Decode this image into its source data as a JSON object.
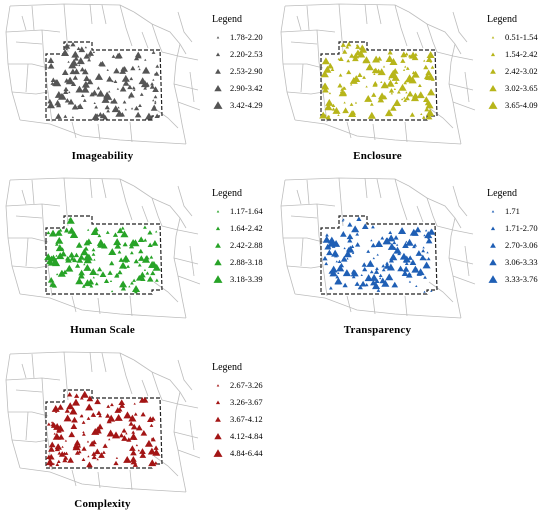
{
  "panels": [
    {
      "title": "Imageability",
      "color": "#555555",
      "legend_title": "Legend",
      "classes": [
        "1.78-2.20",
        "2.20-2.53",
        "2.53-2.90",
        "2.90-3.42",
        "3.42-4.29"
      ]
    },
    {
      "title": "Enclosure",
      "color": "#b7b51a",
      "legend_title": "Legend",
      "classes": [
        "0.51-1.54",
        "1.54-2.42",
        "2.42-3.02",
        "3.02-3.65",
        "3.65-4.09"
      ]
    },
    {
      "title": "Human Scale",
      "color": "#27a327",
      "legend_title": "Legend",
      "classes": [
        "1.17-1.64",
        "1.64-2.42",
        "2.42-2.88",
        "2.88-3.18",
        "3.18-3.39"
      ]
    },
    {
      "title": "Transparency",
      "color": "#1f5fb5",
      "legend_title": "Legend",
      "classes": [
        "1.71",
        "1.71-2.70",
        "2.70-3.06",
        "3.06-3.33",
        "3.33-3.76"
      ]
    },
    {
      "title": "Complexity",
      "color": "#a31515",
      "legend_title": "Legend",
      "classes": [
        "2.67-3.26",
        "3.26-3.67",
        "3.67-4.12",
        "4.12-4.84",
        "4.84-6.44"
      ]
    }
  ]
}
